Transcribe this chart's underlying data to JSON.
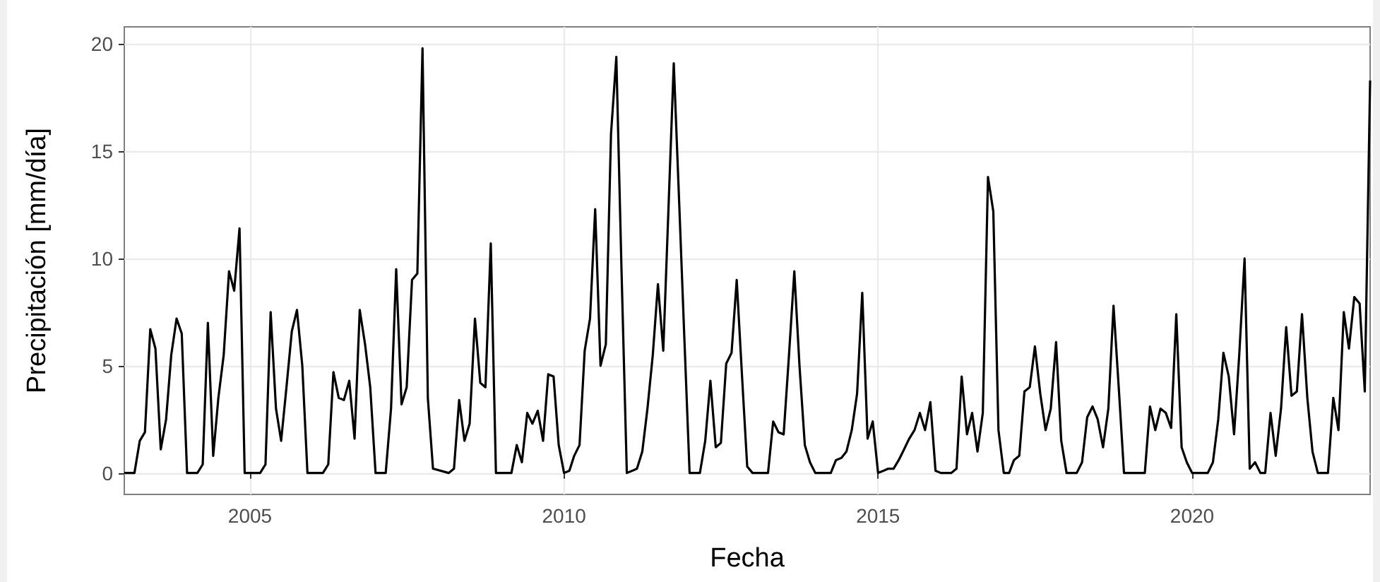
{
  "chart_data": {
    "type": "line",
    "xlabel": "Fecha",
    "ylabel": "Precipitación [mm/día]",
    "xlim": [
      "2003-01",
      "2022-11"
    ],
    "xticks": [
      {
        "value": "2005",
        "label": "2005"
      },
      {
        "value": "2010",
        "label": "2010"
      },
      {
        "value": "2015",
        "label": "2015"
      },
      {
        "value": "2020",
        "label": "2020"
      }
    ],
    "ylim": [
      -1,
      20.8
    ],
    "yticks": [
      0,
      5,
      10,
      15,
      20
    ],
    "grid": true,
    "marker": "none",
    "line_style": "solid",
    "series": [
      {
        "color": "#000000",
        "x": [
          "2003-01",
          "2003-03",
          "2003-04",
          "2003-05",
          "2003-06",
          "2003-07",
          "2003-08",
          "2003-09",
          "2003-10",
          "2003-11",
          "2003-12",
          "2004-01",
          "2004-03",
          "2004-04",
          "2004-05",
          "2004-06",
          "2004-07",
          "2004-08",
          "2004-09",
          "2004-10",
          "2004-11",
          "2004-12",
          "2005-03",
          "2005-04",
          "2005-05",
          "2005-06",
          "2005-07",
          "2005-08",
          "2005-09",
          "2005-10",
          "2005-11",
          "2005-12",
          "2006-03",
          "2006-04",
          "2006-05",
          "2006-06",
          "2006-07",
          "2006-08",
          "2006-09",
          "2006-10",
          "2006-11",
          "2006-12",
          "2007-01",
          "2007-03",
          "2007-04",
          "2007-05",
          "2007-06",
          "2007-07",
          "2007-08",
          "2007-09",
          "2007-10",
          "2007-11",
          "2007-12",
          "2008-03",
          "2008-04",
          "2008-05",
          "2008-06",
          "2008-07",
          "2008-08",
          "2008-09",
          "2008-10",
          "2008-11",
          "2008-12",
          "2009-03",
          "2009-04",
          "2009-05",
          "2009-06",
          "2009-07",
          "2009-08",
          "2009-09",
          "2009-10",
          "2009-11",
          "2009-12",
          "2010-01",
          "2010-02",
          "2010-03",
          "2010-04",
          "2010-05",
          "2010-06",
          "2010-07",
          "2010-08",
          "2010-09",
          "2010-10",
          "2010-11",
          "2010-12",
          "2011-01",
          "2011-02",
          "2011-03",
          "2011-04",
          "2011-05",
          "2011-06",
          "2011-07",
          "2011-08",
          "2011-09",
          "2011-10",
          "2011-11",
          "2011-12",
          "2012-01",
          "2012-03",
          "2012-04",
          "2012-05",
          "2012-06",
          "2012-07",
          "2012-08",
          "2012-09",
          "2012-10",
          "2012-11",
          "2012-12",
          "2013-01",
          "2013-04",
          "2013-05",
          "2013-06",
          "2013-07",
          "2013-08",
          "2013-09",
          "2013-10",
          "2013-11",
          "2013-12",
          "2014-01",
          "2014-04",
          "2014-05",
          "2014-06",
          "2014-07",
          "2014-08",
          "2014-09",
          "2014-10",
          "2014-11",
          "2014-12",
          "2015-01",
          "2015-02",
          "2015-03",
          "2015-04",
          "2015-05",
          "2015-06",
          "2015-07",
          "2015-08",
          "2015-09",
          "2015-10",
          "2015-11",
          "2015-12",
          "2016-01",
          "2016-03",
          "2016-04",
          "2016-05",
          "2016-06",
          "2016-07",
          "2016-08",
          "2016-09",
          "2016-10",
          "2016-11",
          "2016-12",
          "2017-01",
          "2017-02",
          "2017-03",
          "2017-04",
          "2017-05",
          "2017-06",
          "2017-07",
          "2017-08",
          "2017-09",
          "2017-10",
          "2017-11",
          "2017-12",
          "2018-01",
          "2018-03",
          "2018-04",
          "2018-05",
          "2018-06",
          "2018-07",
          "2018-08",
          "2018-09",
          "2018-10",
          "2018-11",
          "2018-12",
          "2019-04",
          "2019-05",
          "2019-06",
          "2019-07",
          "2019-08",
          "2019-09",
          "2019-10",
          "2019-11",
          "2019-12",
          "2020-01",
          "2020-04",
          "2020-05",
          "2020-06",
          "2020-07",
          "2020-08",
          "2020-09",
          "2020-10",
          "2020-11",
          "2020-12",
          "2021-01",
          "2021-02",
          "2021-03",
          "2021-04",
          "2021-05",
          "2021-06",
          "2021-07",
          "2021-08",
          "2021-09",
          "2021-10",
          "2021-11",
          "2021-12",
          "2022-01",
          "2022-03",
          "2022-04",
          "2022-05",
          "2022-06",
          "2022-07",
          "2022-08",
          "2022-09",
          "2022-10",
          "2022-11"
        ],
        "values": [
          0,
          0,
          1.5,
          1.9,
          6.7,
          5.8,
          1.1,
          2.5,
          5.5,
          7.2,
          6.5,
          0,
          0,
          0.4,
          7,
          0.8,
          3.5,
          5.5,
          9.4,
          8.5,
          11.4,
          0,
          0,
          0.4,
          7.5,
          3,
          1.5,
          4,
          6.6,
          7.6,
          5,
          0,
          0,
          0.4,
          4.7,
          3.5,
          3.4,
          4.3,
          1.6,
          7.6,
          6,
          4,
          0,
          0,
          3,
          9.5,
          3.2,
          4,
          9,
          9.3,
          19.8,
          3.5,
          0.2,
          0,
          0.2,
          3.4,
          1.5,
          2.3,
          7.2,
          4.2,
          4,
          10.7,
          0,
          0,
          1.3,
          0.5,
          2.8,
          2.3,
          2.9,
          1.5,
          4.6,
          4.5,
          1.3,
          0,
          0.1,
          0.8,
          1.3,
          5.7,
          7.2,
          12.3,
          5,
          6,
          15.8,
          19.4,
          9.5,
          0,
          0.1,
          0.2,
          1,
          3,
          5.5,
          8.8,
          5.7,
          12.5,
          19.1,
          12.7,
          6.4,
          0,
          0,
          1.5,
          4.3,
          1.2,
          1.4,
          5.1,
          5.6,
          9,
          4.5,
          0.3,
          0,
          0,
          2.4,
          1.9,
          1.8,
          5.5,
          9.4,
          5,
          1.3,
          0.5,
          0,
          0,
          0.6,
          0.7,
          1,
          2,
          3.7,
          8.4,
          1.6,
          2.4,
          0,
          0.1,
          0.2,
          0.2,
          0.6,
          1.1,
          1.6,
          2,
          2.8,
          2,
          3.3,
          0.1,
          0,
          0,
          0.2,
          4.5,
          1.8,
          2.8,
          1,
          2.8,
          13.8,
          12.2,
          2,
          0,
          0,
          0.6,
          0.8,
          3.8,
          4,
          5.9,
          3.7,
          2,
          3,
          6.1,
          1.5,
          0,
          0,
          0.5,
          2.6,
          3.1,
          2.5,
          1.2,
          3,
          7.8,
          3.9,
          0,
          0,
          3.1,
          2,
          3,
          2.8,
          2.1,
          7.4,
          1.2,
          0.5,
          0,
          0,
          0.5,
          2.5,
          5.6,
          4.5,
          1.8,
          5.5,
          10,
          0.2,
          0.5,
          0,
          0,
          2.8,
          0.8,
          3,
          6.8,
          3.6,
          3.8,
          7.4,
          3.5,
          1,
          0,
          0,
          3.5,
          2,
          7.5,
          5.8,
          8.2,
          7.9,
          3.8,
          18.3
        ]
      }
    ]
  }
}
